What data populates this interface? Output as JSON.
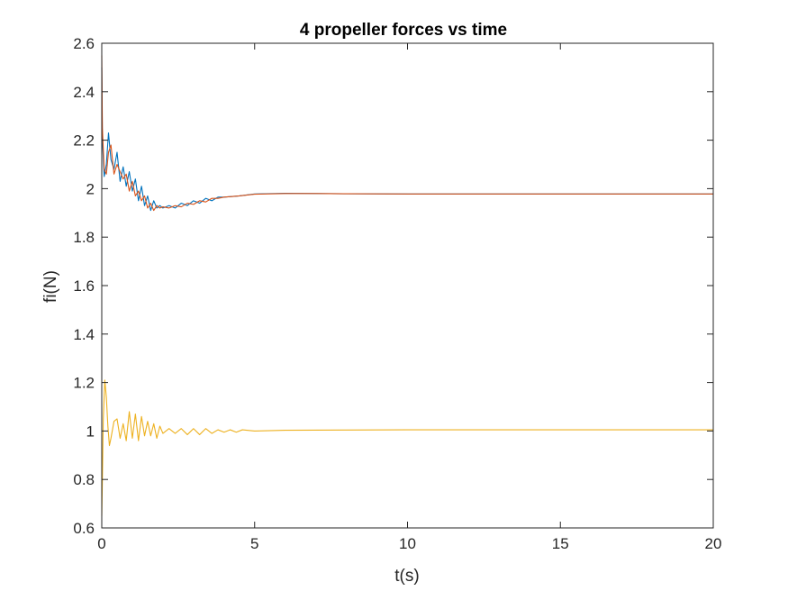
{
  "chart_data": {
    "type": "line",
    "title": "4 propeller forces vs time",
    "xlabel": "t(s)",
    "ylabel": "fi(N)",
    "xlim": [
      0,
      20
    ],
    "ylim": [
      0.6,
      2.6
    ],
    "xticks": [
      0,
      5,
      10,
      15,
      20
    ],
    "xtick_labels": [
      "0",
      "5",
      "10",
      "15",
      "20"
    ],
    "yticks": [
      0.6,
      0.8,
      1.0,
      1.2,
      1.4,
      1.6,
      1.8,
      2.0,
      2.2,
      2.4,
      2.6
    ],
    "ytick_labels": [
      "0.6",
      "0.8",
      "1",
      "1.2",
      "1.4",
      "1.6",
      "1.8",
      "2",
      "2.2",
      "2.4",
      "2.6"
    ],
    "grid": false,
    "legend": "none",
    "series": [
      {
        "color": "#0072BD",
        "x": [
          0,
          0.02,
          0.08,
          0.15,
          0.22,
          0.3,
          0.4,
          0.5,
          0.6,
          0.7,
          0.8,
          0.9,
          1.0,
          1.1,
          1.2,
          1.3,
          1.4,
          1.5,
          1.6,
          1.7,
          1.8,
          1.9,
          2.0,
          2.2,
          2.4,
          2.6,
          2.8,
          3.0,
          3.2,
          3.4,
          3.6,
          3.8,
          4.0,
          4.5,
          5.0,
          6.0,
          7.0,
          8.0,
          10.0,
          15.0,
          20.0
        ],
        "y": [
          2.5,
          2.2,
          2.05,
          2.1,
          2.23,
          2.12,
          2.08,
          2.15,
          2.03,
          2.09,
          2.01,
          2.07,
          1.99,
          2.04,
          1.95,
          2.01,
          1.93,
          1.97,
          1.91,
          1.95,
          1.92,
          1.93,
          1.92,
          1.93,
          1.92,
          1.94,
          1.93,
          1.95,
          1.94,
          1.96,
          1.95,
          1.965,
          1.965,
          1.97,
          1.978,
          1.981,
          1.98,
          1.979,
          1.978,
          1.978,
          1.978
        ]
      },
      {
        "color": "#D95319",
        "x": [
          0,
          0.02,
          0.08,
          0.15,
          0.22,
          0.3,
          0.4,
          0.5,
          0.6,
          0.7,
          0.8,
          0.9,
          1.0,
          1.1,
          1.2,
          1.3,
          1.4,
          1.5,
          1.6,
          1.7,
          1.8,
          1.9,
          2.0,
          2.2,
          2.4,
          2.6,
          2.8,
          3.0,
          3.2,
          3.4,
          3.6,
          3.8,
          4.0,
          4.5,
          5.0,
          6.0,
          7.0,
          8.0,
          10.0,
          15.0,
          20.0
        ],
        "y": [
          2.55,
          2.25,
          2.08,
          2.06,
          2.15,
          2.18,
          2.06,
          2.1,
          2.07,
          2.04,
          2.06,
          1.99,
          2.03,
          1.97,
          1.99,
          1.95,
          1.97,
          1.92,
          1.94,
          1.91,
          1.93,
          1.92,
          1.925,
          1.92,
          1.93,
          1.925,
          1.94,
          1.935,
          1.95,
          1.945,
          1.96,
          1.96,
          1.965,
          1.97,
          1.977,
          1.98,
          1.98,
          1.979,
          1.978,
          1.978,
          1.978
        ]
      },
      {
        "color": "#EDB120",
        "x": [
          0,
          0.02,
          0.05,
          0.1,
          0.15,
          0.2,
          0.25,
          0.3,
          0.4,
          0.5,
          0.6,
          0.7,
          0.8,
          0.9,
          1.0,
          1.1,
          1.2,
          1.3,
          1.4,
          1.5,
          1.6,
          1.7,
          1.8,
          1.9,
          2.0,
          2.2,
          2.4,
          2.6,
          2.8,
          3.0,
          3.2,
          3.4,
          3.6,
          3.8,
          4.0,
          4.2,
          4.4,
          4.6,
          5.0,
          6.0,
          8.0,
          10.0,
          15.0,
          20.0
        ],
        "y": [
          0.65,
          0.8,
          1.05,
          1.21,
          1.14,
          1.02,
          0.94,
          0.97,
          1.04,
          1.05,
          0.97,
          1.03,
          0.96,
          1.08,
          0.97,
          1.07,
          0.96,
          1.06,
          0.98,
          1.04,
          0.98,
          1.03,
          0.97,
          1.02,
          0.99,
          1.01,
          0.99,
          1.01,
          0.985,
          1.01,
          0.985,
          1.01,
          0.99,
          1.005,
          0.995,
          1.005,
          0.995,
          1.005,
          1.0,
          1.003,
          1.004,
          1.005,
          1.005,
          1.005
        ]
      }
    ]
  }
}
